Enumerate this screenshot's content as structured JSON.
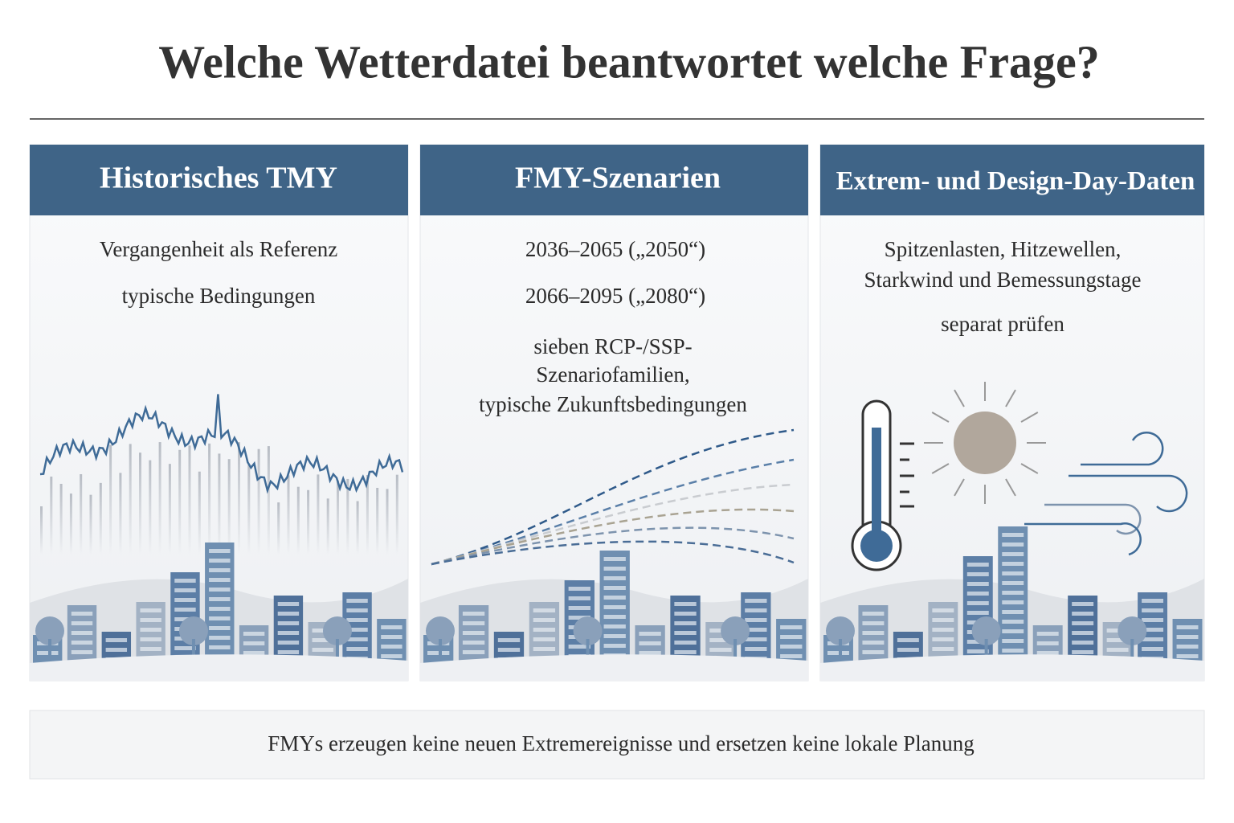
{
  "title": "Welche Wetterdatei beantwortet welche Frage?",
  "panels": [
    {
      "heading": "Historisches TMY",
      "lines": [
        "Vergangenheit als Referenz",
        "typische Bedingungen"
      ]
    },
    {
      "heading": "FMY-Szenarien",
      "lines": [
        "2036–2065 („2050“)",
        "2066–2095 („2080“)",
        "sieben RCP-/SSP-",
        "Szenariofamilien,",
        "typische Zukunftsbedingungen"
      ]
    },
    {
      "heading": "Extrem- und Design-Day-Daten",
      "lines": [
        "Spitzenlasten, Hitzewellen,",
        "Starkwind und Bemessungstage",
        "separat prüfen"
      ]
    }
  ],
  "footer": "FMYs erzeugen keine neuen Extremereignisse und ersetzen keine lokale Planung"
}
